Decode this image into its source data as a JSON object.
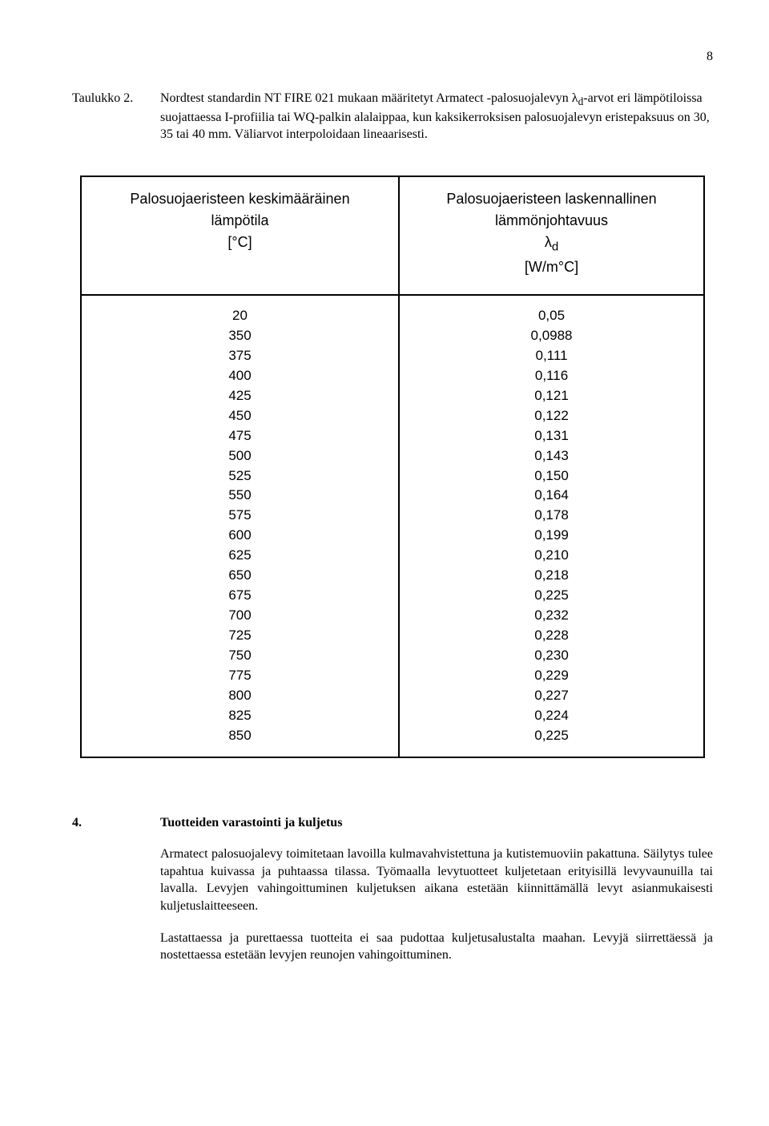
{
  "page_number": "8",
  "caption": {
    "label": "Taulukko 2.",
    "text_parts": [
      "Nordtest standardin NT FIRE 021 mukaan määritetyt Armatect -palosuojalevyn λ",
      "d",
      "-arvot eri lämpötiloissa suojattaessa I-profiilia tai WQ-palkin alalaippaa, kun kaksikerroksisen palosuojalevyn eristepaksuus on 30, 35 tai 40 mm. Väliarvot interpoloidaan lineaarisesti."
    ]
  },
  "table": {
    "left_header_lines": [
      "Palosuojaeristeen keskimääräinen",
      "lämpötila",
      "[°C]"
    ],
    "right_header_lines": [
      "Palosuojaeristeen laskennallinen",
      "lämmönjohtavuus",
      "λ",
      "d",
      "[W/m°C]"
    ],
    "rows": [
      {
        "t": "20",
        "v": "0,05"
      },
      {
        "t": "350",
        "v": "0,0988"
      },
      {
        "t": "375",
        "v": "0,111"
      },
      {
        "t": "400",
        "v": "0,116"
      },
      {
        "t": "425",
        "v": "0,121"
      },
      {
        "t": "450",
        "v": "0,122"
      },
      {
        "t": "475",
        "v": "0,131"
      },
      {
        "t": "500",
        "v": "0,143"
      },
      {
        "t": "525",
        "v": "0,150"
      },
      {
        "t": "550",
        "v": "0,164"
      },
      {
        "t": "575",
        "v": "0,178"
      },
      {
        "t": "600",
        "v": "0,199"
      },
      {
        "t": "625",
        "v": "0,210"
      },
      {
        "t": "650",
        "v": "0,218"
      },
      {
        "t": "675",
        "v": "0,225"
      },
      {
        "t": "700",
        "v": "0,232"
      },
      {
        "t": "725",
        "v": "0,228"
      },
      {
        "t": "750",
        "v": "0,230"
      },
      {
        "t": "775",
        "v": "0,229"
      },
      {
        "t": "800",
        "v": "0,227"
      },
      {
        "t": "825",
        "v": "0,224"
      },
      {
        "t": "850",
        "v": "0,225"
      }
    ]
  },
  "section": {
    "number": "4.",
    "title": "Tuotteiden varastointi ja kuljetus"
  },
  "para1": "Armatect palosuojalevy toimitetaan lavoilla kulmavahvistettuna ja kutistemuoviin pakattuna. Säilytys tulee tapahtua kuivassa ja puhtaassa tilassa. Työmaalla levytuotteet kuljetetaan erityisillä levyvaunuilla tai lavalla. Levyjen vahingoittuminen kuljetuksen aikana estetään kiinnittämällä levyt asianmukaisesti kuljetuslaitteeseen.",
  "para2": "Lastattaessa ja purettaessa tuotteita ei saa pudottaa kuljetusalustalta maahan. Levyjä siirrettäessä ja nostettaessa estetään levyjen reunojen vahingoittuminen."
}
